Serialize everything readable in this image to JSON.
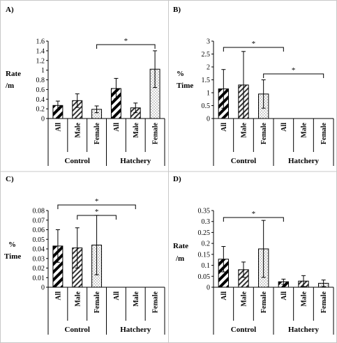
{
  "chart_data": [
    {
      "panel_label": "A)",
      "type": "bar",
      "ylabel": "Rate /m",
      "ylim": [
        0,
        1.6
      ],
      "yticks": [
        "0",
        "0.2",
        "0.4",
        "0.6",
        "0.8",
        "1",
        "1.2",
        "1.4",
        "1.6"
      ],
      "categories": [
        "All",
        "Male",
        "Female",
        "All",
        "Male",
        "Female"
      ],
      "groups": [
        "Control",
        "Hatchery"
      ],
      "values": [
        0.27,
        0.37,
        0.19,
        0.62,
        0.22,
        1.02
      ],
      "errors": [
        0.09,
        0.14,
        0.07,
        0.21,
        0.1,
        0.38
      ],
      "significance": [
        {
          "from": 2,
          "to": 5,
          "label": "*"
        }
      ]
    },
    {
      "panel_label": "B)",
      "type": "bar",
      "ylabel": "% Time",
      "ylim": [
        0,
        3
      ],
      "yticks": [
        "0",
        "0.5",
        "1",
        "1.5",
        "2",
        "2.5",
        "3"
      ],
      "categories": [
        "All",
        "Male",
        "Female",
        "All",
        "Male",
        "Female"
      ],
      "groups": [
        "Control",
        "Hatchery"
      ],
      "values": [
        1.15,
        1.3,
        0.95,
        0,
        0,
        0
      ],
      "errors": [
        0.75,
        1.3,
        0.55,
        0,
        0,
        0
      ],
      "significance": [
        {
          "from": 0,
          "to": 3,
          "label": "*"
        },
        {
          "from": 2,
          "to": 5,
          "label": "*"
        }
      ]
    },
    {
      "panel_label": "C)",
      "type": "bar",
      "ylabel": "% Time",
      "ylim": [
        0,
        0.08
      ],
      "yticks": [
        "0",
        "0.01",
        "0.02",
        "0.03",
        "0.04",
        "0.05",
        "0.06",
        "0.07",
        "0.08"
      ],
      "categories": [
        "All",
        "Male",
        "Female",
        "All",
        "Male",
        "Female"
      ],
      "groups": [
        "Control",
        "Hatchery"
      ],
      "values": [
        0.043,
        0.041,
        0.044,
        0,
        0,
        0
      ],
      "errors": [
        0.017,
        0.021,
        0.031,
        0,
        0,
        0
      ],
      "significance": [
        {
          "from": 0,
          "to": 4,
          "label": "*"
        },
        {
          "from": 1,
          "to": 3,
          "label": "*"
        }
      ]
    },
    {
      "panel_label": "D)",
      "type": "bar",
      "ylabel": "Rate /m",
      "ylim": [
        0,
        0.35
      ],
      "yticks": [
        "0",
        "0.05",
        "0.1",
        "0.15",
        "0.2",
        "0.25",
        "0.3",
        "0.35"
      ],
      "categories": [
        "All",
        "Male",
        "Female",
        "All",
        "Male",
        "Female"
      ],
      "groups": [
        "Control",
        "Hatchery"
      ],
      "values": [
        0.128,
        0.08,
        0.175,
        0.025,
        0.028,
        0.018
      ],
      "errors": [
        0.058,
        0.035,
        0.13,
        0.012,
        0.025,
        0.015
      ],
      "significance": [
        {
          "from": 0,
          "to": 3,
          "label": "*"
        }
      ]
    }
  ]
}
